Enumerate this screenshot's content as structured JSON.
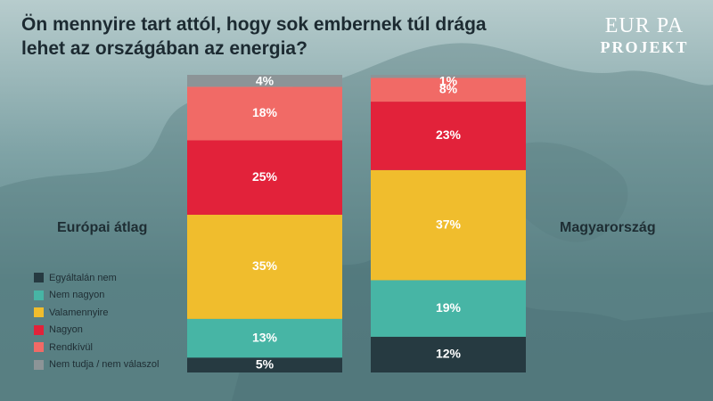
{
  "title": "Ön mennyire tart attól, hogy sok embernek túl drága lehet az országában az energia?",
  "logo": {
    "top": "EUR PA",
    "bottom": "PROJEKT"
  },
  "chart_data": {
    "type": "bar",
    "stacked": true,
    "categories": [
      "Európai átlag",
      "Magyarország"
    ],
    "ylim": [
      0,
      100
    ],
    "series": [
      {
        "name": "Egyáltalán nem",
        "color": "#263a41",
        "values": [
          5,
          12
        ],
        "labels": [
          "5%",
          "12%"
        ]
      },
      {
        "name": "Nem nagyon",
        "color": "#47b5a5",
        "values": [
          13,
          19
        ],
        "labels": [
          "13%",
          "19%"
        ]
      },
      {
        "name": "Valamennyire",
        "color": "#f0bd2d",
        "values": [
          35,
          37
        ],
        "labels": [
          "35%",
          "37%"
        ]
      },
      {
        "name": "Nagyon",
        "color": "#e2223a",
        "values": [
          25,
          23
        ],
        "labels": [
          "25%",
          "23%"
        ]
      },
      {
        "name": "Rendkívül",
        "color": "#f16a66",
        "values": [
          18,
          8
        ],
        "labels": [
          "18%",
          "8%"
        ]
      },
      {
        "name": "Nem tudja / nem válaszol",
        "color": "#8c9497",
        "values": [
          4,
          1
        ],
        "labels": [
          "4%",
          "1%"
        ]
      }
    ]
  }
}
